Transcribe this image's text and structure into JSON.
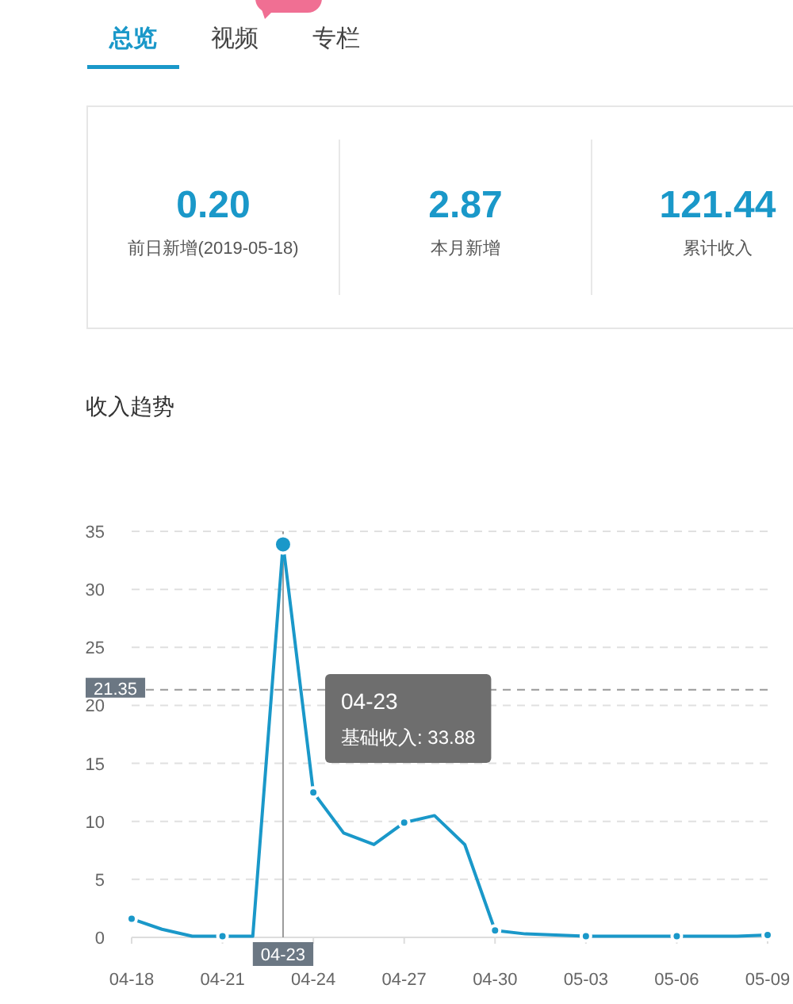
{
  "chart_data": [
    {
      "type": "other",
      "annotations": [
        "总览",
        "视频",
        "专栏"
      ],
      "categories": [
        "前日新增(2019-05-18)",
        "本月新增",
        "累计收入"
      ],
      "value_labels": [
        "0.20",
        "2.87",
        "121.44"
      ]
    },
    {
      "type": "line",
      "title": "收入趋势",
      "series": [
        {
          "color": "#1a98c9",
          "line_style": "solid",
          "x": [
            "--04-18",
            "--04-19",
            "--04-20",
            "--04-21",
            "--04-22",
            "--04-23",
            "--04-24",
            "--04-25",
            "--04-26",
            "--04-27",
            "--04-28",
            "--04-29",
            "--04-30",
            "--05-01",
            "--05-02",
            "--05-03",
            "--05-04",
            "--05-05",
            "--05-06",
            "--05-07",
            "--05-08",
            "--05-09"
          ],
          "values": [
            1.6,
            0.7,
            0.1,
            0.1,
            0.1,
            33.88,
            12.5,
            9.0,
            8.0,
            9.9,
            10.5,
            8.0,
            0.6,
            0.3,
            0.2,
            0.1,
            0.1,
            0.1,
            0.1,
            0.1,
            0.1,
            0.2
          ]
        },
        {
          "type": "scatter",
          "color": "#1a98c9",
          "marker": "circle",
          "x": [
            "--04-18",
            "--04-21",
            "--04-24",
            "--04-27",
            "--04-30",
            "--05-03",
            "--05-06",
            "--05-09"
          ],
          "values": [
            1.6,
            0.1,
            12.5,
            9.9,
            0.6,
            0.1,
            0.1,
            0.2
          ]
        }
      ],
      "xlim": [
        "--04-18",
        "--05-09"
      ],
      "xticks": [
        {
          "value": "--04-18",
          "label": "04-18"
        },
        {
          "value": "--04-21",
          "label": "04-21"
        },
        {
          "value": "--04-24",
          "label": "04-24"
        },
        {
          "value": "--04-27",
          "label": "04-27"
        },
        {
          "value": "--04-30",
          "label": "04-30"
        },
        {
          "value": "--05-03",
          "label": "05-03"
        },
        {
          "value": "--05-06",
          "label": "05-06"
        },
        {
          "value": "--05-09",
          "label": "05-09"
        }
      ],
      "ylim": [
        0,
        35
      ],
      "yticks": [
        0,
        5,
        10,
        15,
        20,
        25,
        30,
        35
      ],
      "grid": "y",
      "ref_lines": [
        {
          "axis": "y",
          "value": 21.35,
          "label": "21.35",
          "color": "#999999",
          "line_style": "dashed"
        },
        {
          "axis": "x",
          "value": "--04-23",
          "label": "04-23",
          "color": "#999999",
          "line_style": "solid"
        }
      ],
      "annotations": [
        "04-23\n基础收入: 33.88"
      ]
    }
  ]
}
